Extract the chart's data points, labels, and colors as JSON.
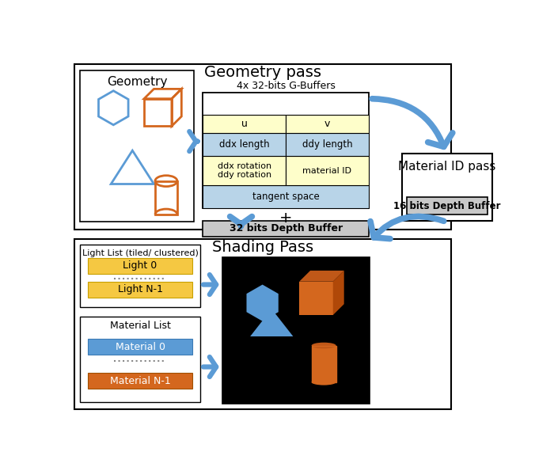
{
  "title_geometry": "Geometry pass",
  "title_shading": "Shading Pass",
  "title_material_id": "Material ID pass",
  "gbuffer_title": "4x 32-bits G-Buffers",
  "depth_buffer_32": "32 bits Depth Buffer",
  "depth_buffer_16": "16 bits Depth Buffer",
  "light_list_title": "Light List (tiled/ clustered)",
  "light_0": "Light 0",
  "light_n1": "Light N-1",
  "material_list_title": "Material List",
  "material_0": "Material 0",
  "material_n1": "Material N-1",
  "geometry_label": "Geometry",
  "arrow_color": "#5b9bd5",
  "blue_shape_color": "#5b9bd5",
  "orange_shape_color": "#d4671e",
  "gbuffer_header_color": "#fefeca",
  "gbuffer_blue_color": "#b8d4e8",
  "gbuffer_yellow_color": "#fefeca",
  "depth_buffer_color": "#c8c8c8",
  "light_bar_color": "#f5c842",
  "light_bar_edge": "#c8a000",
  "material0_bar_color": "#5b9bd5",
  "materialn1_bar_color": "#d4671e",
  "dashed_line_color": "#888888"
}
